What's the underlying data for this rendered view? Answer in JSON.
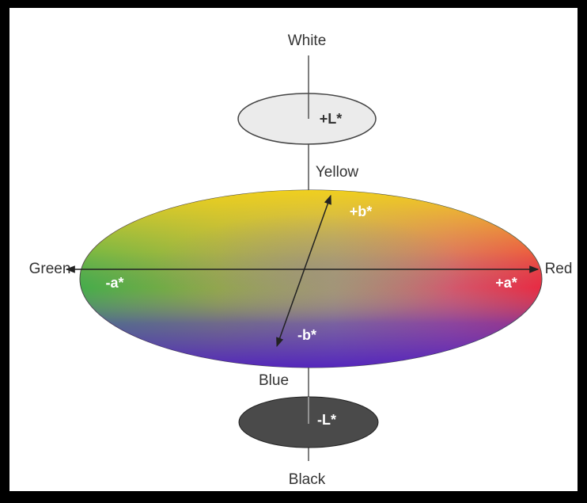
{
  "axes": {
    "lightness": {
      "top": "White",
      "top_label": "+L*",
      "bottom": "Black",
      "bottom_label": "-L*"
    },
    "a": {
      "negative": "Green",
      "negative_label": "-a*",
      "positive": "Red",
      "positive_label": "+a*"
    },
    "b": {
      "positive": "Yellow",
      "positive_label": "+b*",
      "negative": "Blue",
      "negative_label": "-b*"
    }
  }
}
